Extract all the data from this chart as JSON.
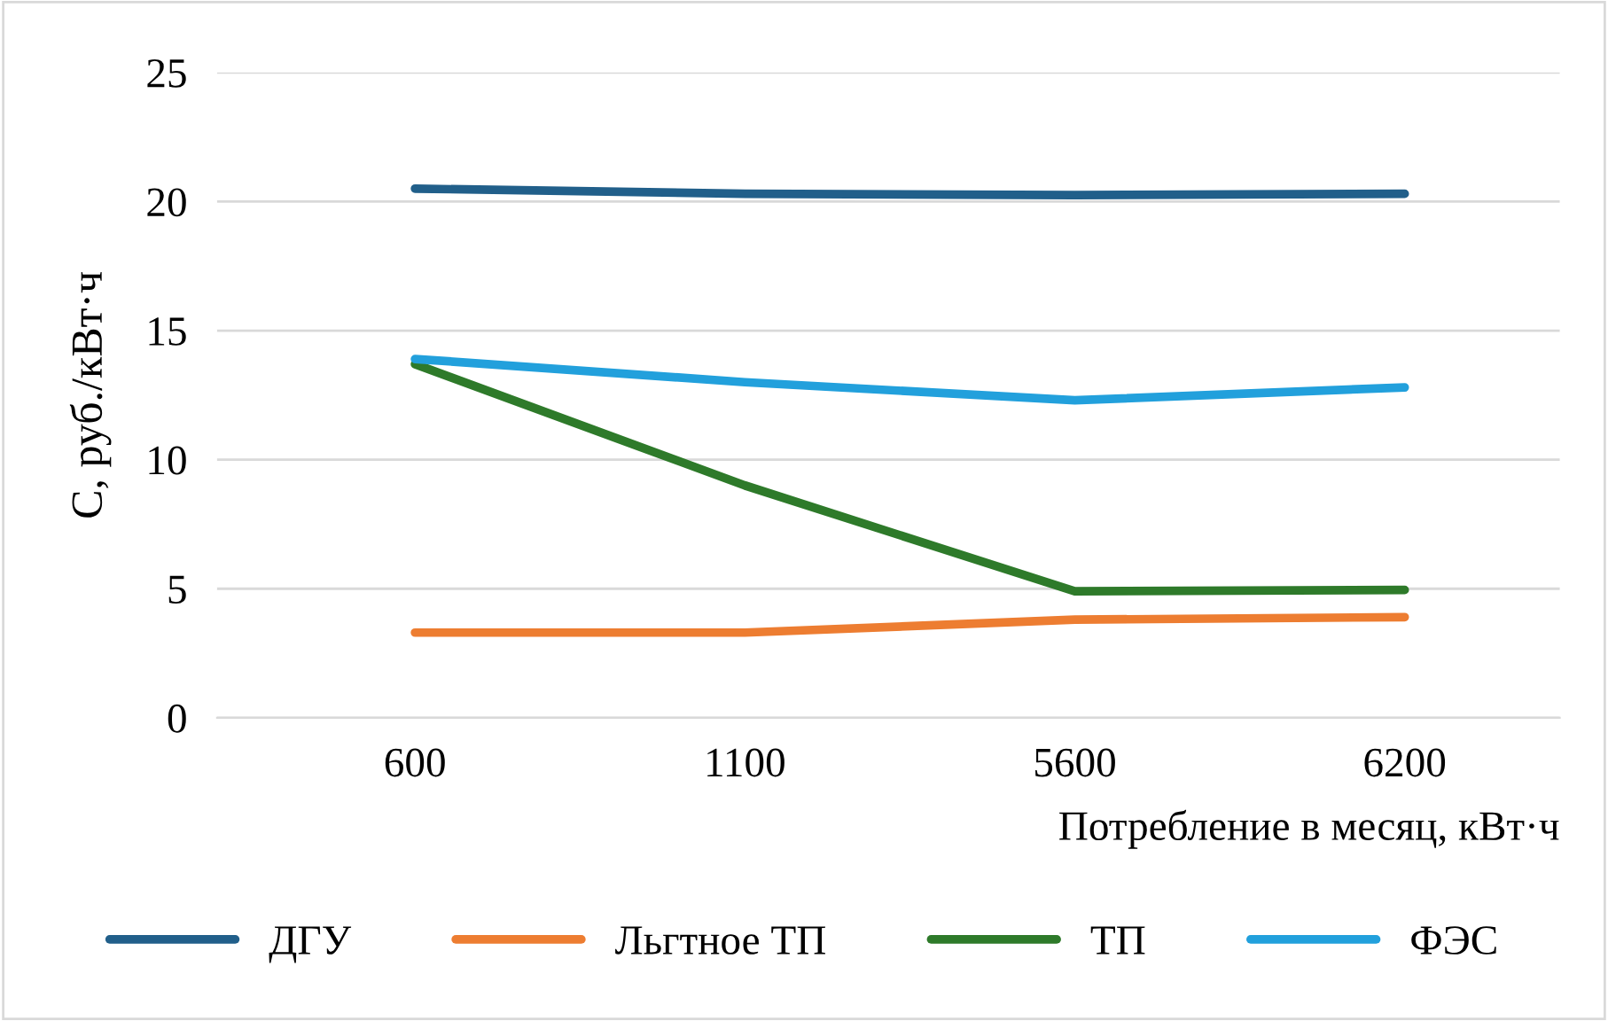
{
  "chart_data": {
    "type": "line",
    "ylabel": "C, руб./кВт·ч",
    "xlabel": "Потребление в месяц, кВт·ч",
    "categories": [
      "600",
      "1100",
      "5600",
      "6200"
    ],
    "series": [
      {
        "name": "ДГУ",
        "color": "#215f8a",
        "values": [
          20.5,
          20.3,
          20.25,
          20.3
        ]
      },
      {
        "name": "Льгтное ТП",
        "color": "#ed7d31",
        "values": [
          3.3,
          3.3,
          3.8,
          3.9
        ]
      },
      {
        "name": "ТП",
        "color": "#2e7a2a",
        "values": [
          13.7,
          9.0,
          4.9,
          4.95
        ]
      },
      {
        "name": "ФЭС",
        "color": "#22a0dc",
        "values": [
          13.9,
          13.0,
          12.3,
          12.8
        ]
      }
    ],
    "ylim": [
      0,
      25
    ],
    "yticks": [
      0,
      5,
      10,
      15,
      20,
      25
    ],
    "grid": "y",
    "legend": "bottom",
    "marker": "none",
    "line_style": "solid"
  }
}
